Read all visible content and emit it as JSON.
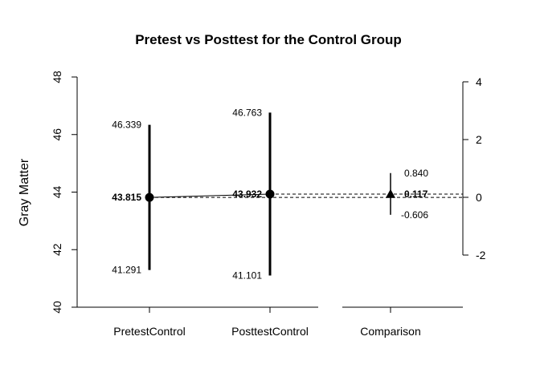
{
  "chart_data": {
    "type": "dot",
    "title": "Pretest vs Posttest for the Control Group",
    "ylabel": "Gray Matter",
    "xlabel": "",
    "grid": false,
    "left_axis": {
      "ylim": [
        40,
        48
      ],
      "ticks": [
        40,
        42,
        44,
        46,
        48
      ]
    },
    "right_axis": {
      "ylim": [
        -2,
        4
      ],
      "ticks": [
        -2,
        0,
        2,
        4
      ]
    },
    "categories": [
      "PretestControl",
      "PosttestControl",
      "Comparison"
    ],
    "points": [
      {
        "category": "PretestControl",
        "value": 43.815,
        "lower": 41.291,
        "upper": 46.339,
        "labels": {
          "value": "43.815",
          "lower": "41.291",
          "upper": "46.339"
        },
        "marker": "circle"
      },
      {
        "category": "PosttestControl",
        "value": 43.932,
        "lower": 41.101,
        "upper": 46.763,
        "labels": {
          "value": "43.932",
          "lower": "41.101",
          "upper": "46.763"
        },
        "marker": "circle"
      },
      {
        "category": "Comparison",
        "value": 0.117,
        "lower": -0.606,
        "upper": 0.84,
        "labels": {
          "value": "0.117",
          "lower": "-0.606",
          "upper": "0.840"
        },
        "marker": "triangle",
        "axis": "right"
      }
    ]
  }
}
